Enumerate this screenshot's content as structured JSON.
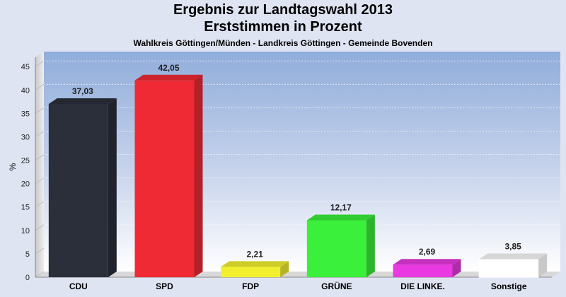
{
  "chart_data": {
    "type": "bar",
    "title": "Ergebnis zur Landtagswahl 2013",
    "title2": "Erststimmen in Prozent",
    "subtitle": "Wahlkreis Göttingen/Münden - Landkreis Göttingen - Gemeinde Bovenden",
    "ylabel": "%",
    "ylim": [
      0,
      47
    ],
    "yticks": [
      0,
      5,
      10,
      15,
      20,
      25,
      30,
      35,
      40,
      45
    ],
    "grid": true,
    "categories": [
      "CDU",
      "SPD",
      "FDP",
      "GRÜNE",
      "DIE LINKE.",
      "Sonstige"
    ],
    "values": [
      37.03,
      42.05,
      2.21,
      12.17,
      2.69,
      3.85
    ],
    "value_labels": [
      "37,03",
      "42,05",
      "2,21",
      "12,17",
      "2,69",
      "3,85"
    ],
    "colors": [
      "#2b2f3a",
      "#f02a34",
      "#f2f02e",
      "#3af03a",
      "#e83ae0",
      "#ffffff"
    ]
  }
}
